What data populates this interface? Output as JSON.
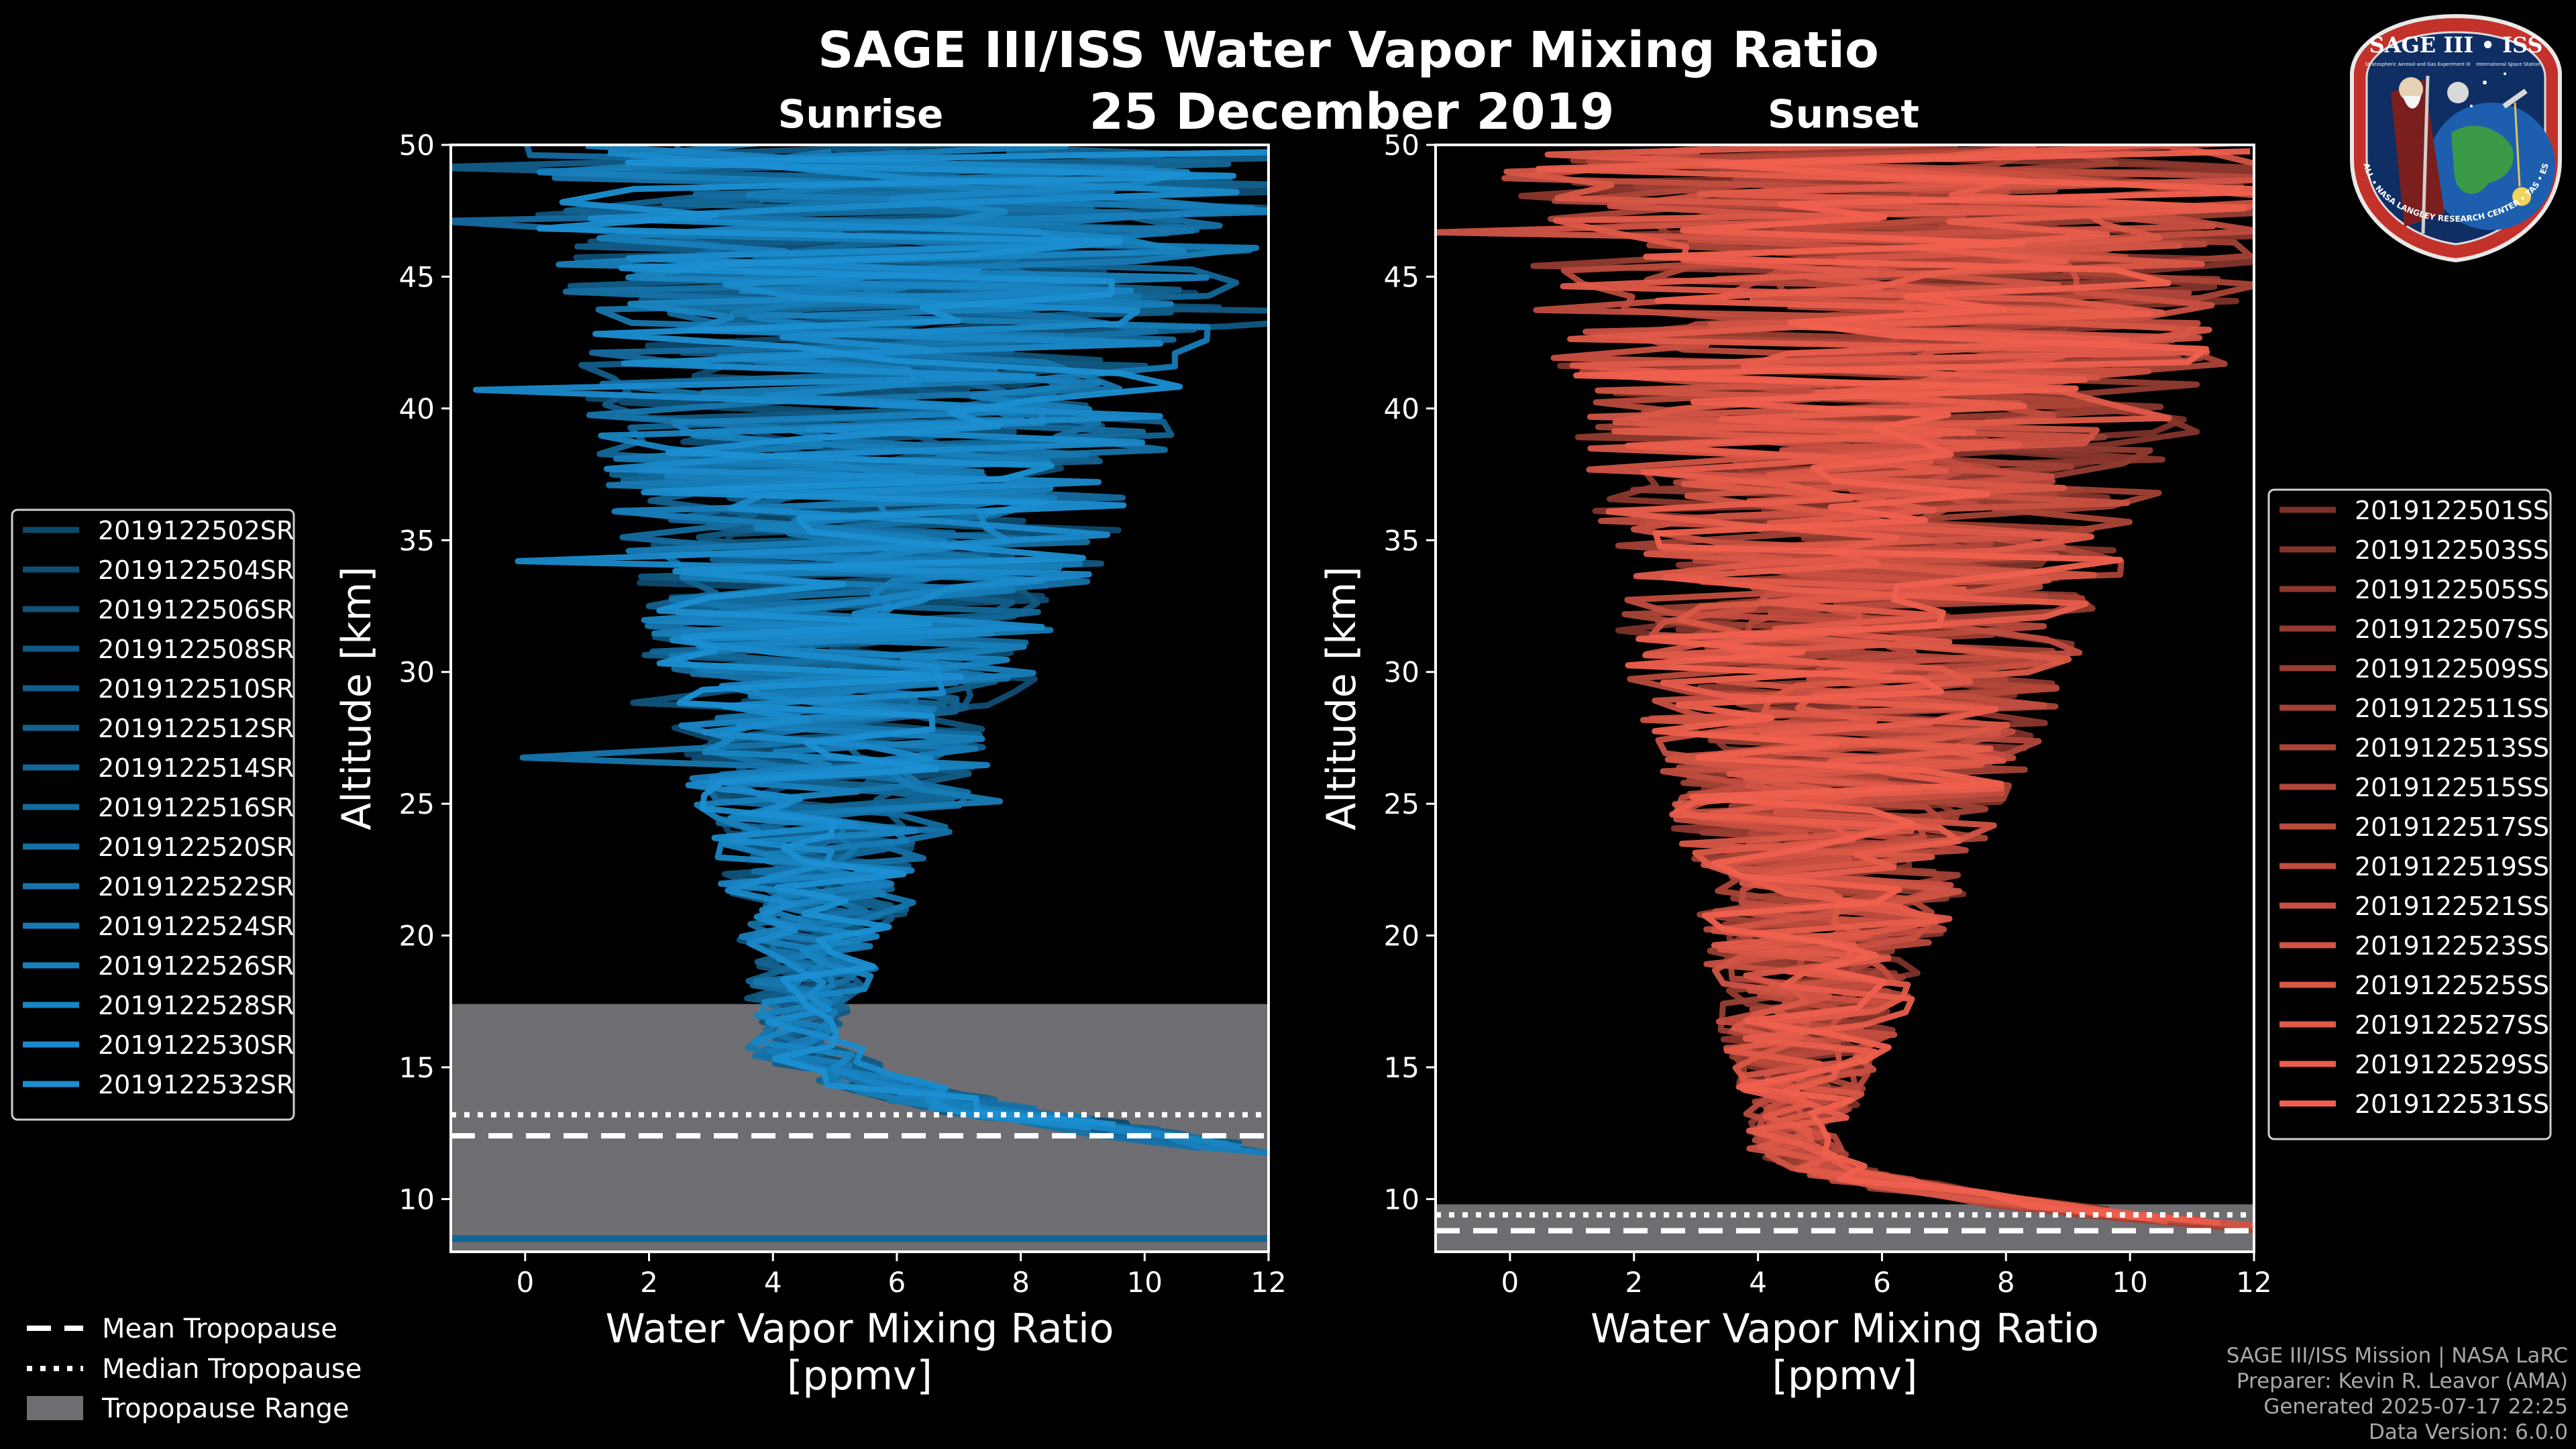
{
  "header": {
    "title": "SAGE III/ISS Water Vapor Mixing Ratio",
    "date": "25 December 2019",
    "left_label": "Sunrise",
    "right_label": "Sunset"
  },
  "badge": {
    "top_text": "SAGE III • ISS",
    "sub_left": "Stratospheric Aerosol and Gas Experiment III",
    "sub_right": "International Space Station",
    "ring_text": "BALL • NASA LANGLEY RESEARCH CENTER • TAS • ESA"
  },
  "footer": {
    "line1": "SAGE III/ISS Mission | NASA LaRC",
    "line2": "Preparer: Kevin R. Leavor (AMA)",
    "line3": "Generated 2025-07-17 22:25",
    "line4": "Data Version: 6.0.0"
  },
  "tropopause_legend": {
    "mean": "Mean Tropopause",
    "median": "Median Tropopause",
    "range": "Tropopause Range"
  },
  "colors": {
    "background": "#000000",
    "sunrise": "#1b8fd2",
    "sunset": "#f0604e",
    "tropopause_fill": "#6e6e72"
  },
  "chart_data": [
    {
      "type": "line",
      "name": "Sunrise",
      "xlabel": "Water Vapor Mixing Ratio [ppmv]",
      "ylabel": "Altitude [km]",
      "xlim": [
        -1.2,
        12
      ],
      "ylim": [
        8,
        50
      ],
      "xticks": [
        0,
        2,
        4,
        6,
        8,
        10,
        12
      ],
      "yticks": [
        10,
        15,
        20,
        25,
        30,
        35,
        40,
        45,
        50
      ],
      "tropopause": {
        "mean": 12.4,
        "median": 13.2,
        "range": [
          8,
          17.4
        ]
      },
      "series": [
        "2019122502SR",
        "2019122504SR",
        "2019122506SR",
        "2019122508SR",
        "2019122510SR",
        "2019122512SR",
        "2019122514SR",
        "2019122516SR",
        "2019122520SR",
        "2019122522SR",
        "2019122524SR",
        "2019122526SR",
        "2019122528SR",
        "2019122530SR",
        "2019122532SR"
      ]
    },
    {
      "type": "line",
      "name": "Sunset",
      "xlabel": "Water Vapor Mixing Ratio [ppmv]",
      "ylabel": "Altitude [km]",
      "xlim": [
        -1.2,
        12
      ],
      "ylim": [
        8,
        50
      ],
      "xticks": [
        0,
        2,
        4,
        6,
        8,
        10,
        12
      ],
      "yticks": [
        10,
        15,
        20,
        25,
        30,
        35,
        40,
        45,
        50
      ],
      "tropopause": {
        "mean": 8.8,
        "median": 9.4,
        "range": [
          8,
          9.8
        ]
      },
      "series": [
        "2019122501SS",
        "2019122503SS",
        "2019122505SS",
        "2019122507SS",
        "2019122509SS",
        "2019122511SS",
        "2019122513SS",
        "2019122515SS",
        "2019122517SS",
        "2019122519SS",
        "2019122521SS",
        "2019122523SS",
        "2019122525SS",
        "2019122527SS",
        "2019122529SS",
        "2019122531SS"
      ]
    }
  ]
}
